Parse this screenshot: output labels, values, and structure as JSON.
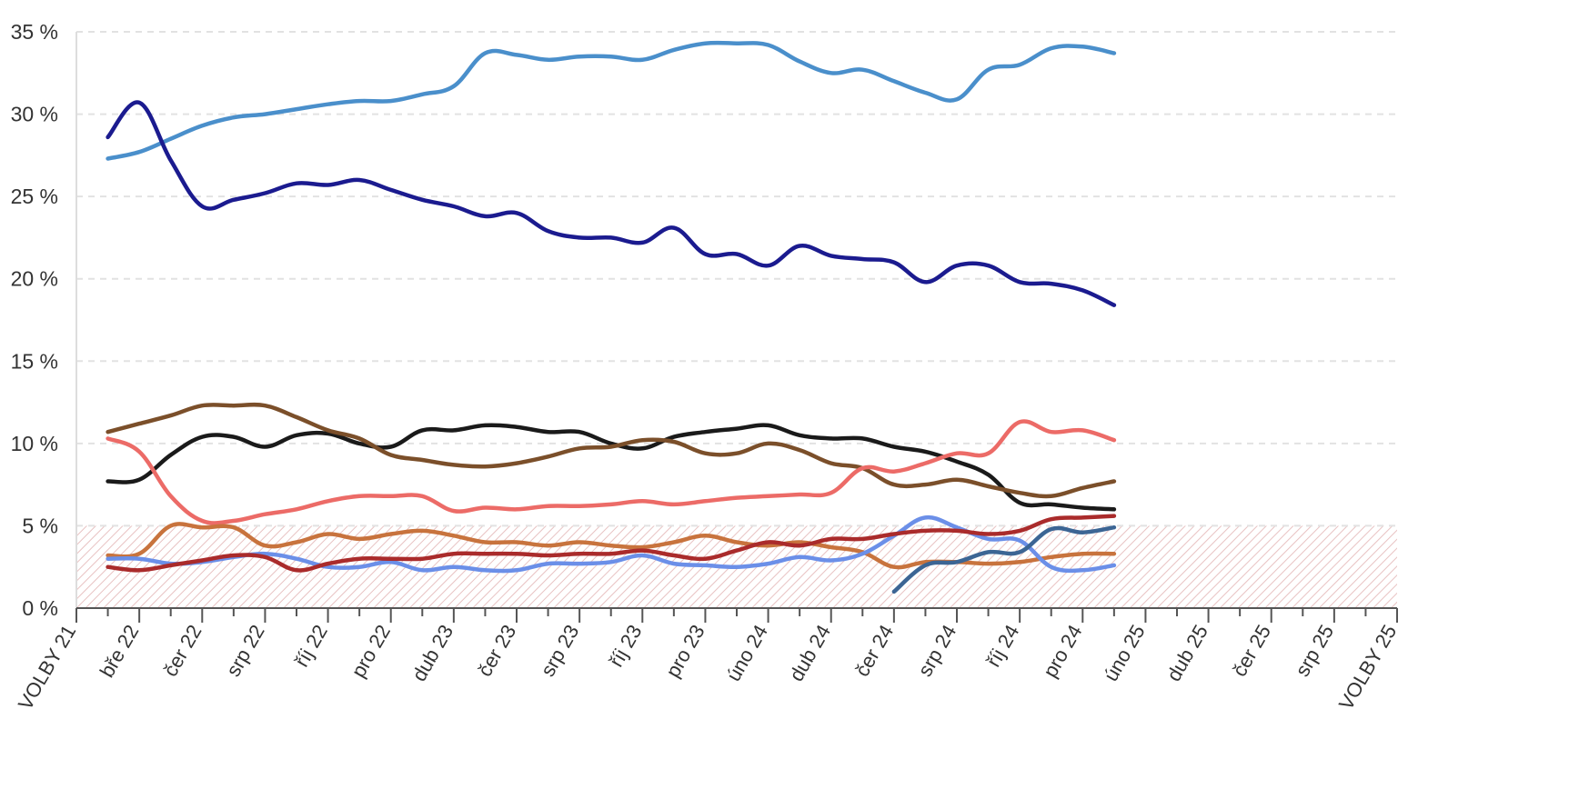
{
  "chart_data": {
    "type": "line",
    "title": "",
    "xlabel": "",
    "ylabel": "",
    "ylim": [
      0,
      35
    ],
    "yticks": [
      0,
      5,
      10,
      15,
      20,
      25,
      30,
      35
    ],
    "ytick_labels": [
      "0 %",
      "5 %",
      "10 %",
      "15 %",
      "20 %",
      "25 %",
      "30 %",
      "35 %"
    ],
    "xticks": [
      "VOLBY 21",
      "bře 22",
      "čer 22",
      "srp 22",
      "říj 22",
      "pro 22",
      "dub 23",
      "čer 23",
      "srp 23",
      "říj 23",
      "pro 23",
      "úno 24",
      "dub 24",
      "čer 24",
      "srp 24",
      "říj 24",
      "pro 24",
      "úno 25",
      "dub 25",
      "čer 25",
      "srp 25",
      "VOLBY 25"
    ],
    "grid": "horizontal dashed",
    "threshold_band": [
      0,
      5
    ],
    "x_step": "half-month (2 steps per tick interval)",
    "series": [
      {
        "color": "#4a8fcb",
        "start_index": 1,
        "values": [
          27.3,
          27.7,
          28.5,
          29.3,
          29.8,
          30.0,
          30.3,
          30.6,
          30.8,
          30.8,
          31.2,
          31.7,
          33.7,
          33.6,
          33.3,
          33.5,
          33.5,
          33.3,
          33.9,
          34.3,
          34.3,
          34.2,
          33.2,
          32.5,
          32.7,
          32.0,
          31.3,
          30.9,
          32.7,
          33.0,
          34.0,
          34.1,
          33.7
        ]
      },
      {
        "color": "#1b1b8f",
        "start_index": 1,
        "values": [
          28.6,
          30.7,
          27.2,
          24.4,
          24.8,
          25.2,
          25.8,
          25.7,
          26.0,
          25.4,
          24.8,
          24.4,
          23.8,
          24.0,
          22.9,
          22.5,
          22.5,
          22.2,
          23.1,
          21.5,
          21.5,
          20.8,
          22.0,
          21.4,
          21.2,
          21.0,
          19.8,
          20.8,
          20.8,
          19.8,
          19.7,
          19.3,
          18.4
        ]
      },
      {
        "color": "#1a1a1a",
        "start_index": 1,
        "values": [
          7.7,
          7.8,
          9.3,
          10.4,
          10.4,
          9.8,
          10.5,
          10.6,
          10.0,
          9.8,
          10.8,
          10.8,
          11.1,
          11.0,
          10.7,
          10.7,
          10.0,
          9.7,
          10.4,
          10.7,
          10.9,
          11.1,
          10.5,
          10.3,
          10.3,
          9.8,
          9.5,
          8.9,
          8.1,
          6.4,
          6.3,
          6.1,
          6.0
        ]
      },
      {
        "color": "#7b4f2a",
        "start_index": 1,
        "values": [
          10.7,
          11.2,
          11.7,
          12.3,
          12.3,
          12.3,
          11.6,
          10.8,
          10.3,
          9.3,
          9.0,
          8.7,
          8.6,
          8.8,
          9.2,
          9.7,
          9.8,
          10.2,
          10.1,
          9.4,
          9.4,
          10.0,
          9.6,
          8.8,
          8.5,
          7.5,
          7.5,
          7.8,
          7.4,
          7.0,
          6.8,
          7.3,
          7.7
        ]
      },
      {
        "color": "#ec6b67",
        "start_index": 1,
        "values": [
          10.3,
          9.5,
          6.8,
          5.3,
          5.3,
          5.7,
          6.0,
          6.5,
          6.8,
          6.8,
          6.8,
          5.9,
          6.1,
          6.0,
          6.2,
          6.2,
          6.3,
          6.5,
          6.3,
          6.5,
          6.7,
          6.8,
          6.9,
          7.0,
          8.5,
          8.3,
          8.8,
          9.4,
          9.4,
          11.3,
          10.7,
          10.8,
          10.2
        ]
      },
      {
        "color": "#c8733d",
        "start_index": 1,
        "values": [
          3.2,
          3.3,
          5.0,
          4.9,
          4.9,
          3.8,
          4.0,
          4.5,
          4.2,
          4.5,
          4.7,
          4.4,
          4.0,
          4.0,
          3.8,
          4.0,
          3.8,
          3.7,
          4.0,
          4.4,
          4.0,
          3.8,
          4.0,
          3.7,
          3.4,
          2.5,
          2.8,
          2.8,
          2.7,
          2.8,
          3.1,
          3.3,
          3.3
        ]
      },
      {
        "color": "#6b8fe8",
        "start_index": 1,
        "values": [
          3.0,
          3.0,
          2.7,
          2.8,
          3.1,
          3.3,
          3.0,
          2.5,
          2.5,
          2.8,
          2.3,
          2.5,
          2.3,
          2.3,
          2.7,
          2.7,
          2.8,
          3.2,
          2.7,
          2.6,
          2.5,
          2.7,
          3.1,
          2.9,
          3.3,
          4.4,
          5.5,
          4.9,
          4.2,
          4.1,
          2.5,
          2.3,
          2.6
        ]
      },
      {
        "color": "#aa2b2b",
        "start_index": 1,
        "values": [
          2.5,
          2.3,
          2.6,
          2.9,
          3.2,
          3.1,
          2.3,
          2.7,
          3.0,
          3.0,
          3.0,
          3.3,
          3.3,
          3.3,
          3.2,
          3.3,
          3.3,
          3.5,
          3.2,
          3.0,
          3.5,
          4.0,
          3.8,
          4.2,
          4.2,
          4.5,
          4.7,
          4.7,
          4.5,
          4.7,
          5.4,
          5.5,
          5.6
        ]
      },
      {
        "color": "#3c6594",
        "start_index": 26,
        "values": [
          1.0,
          2.6,
          2.8,
          3.4,
          3.4,
          4.8,
          4.6,
          4.9
        ]
      }
    ]
  }
}
